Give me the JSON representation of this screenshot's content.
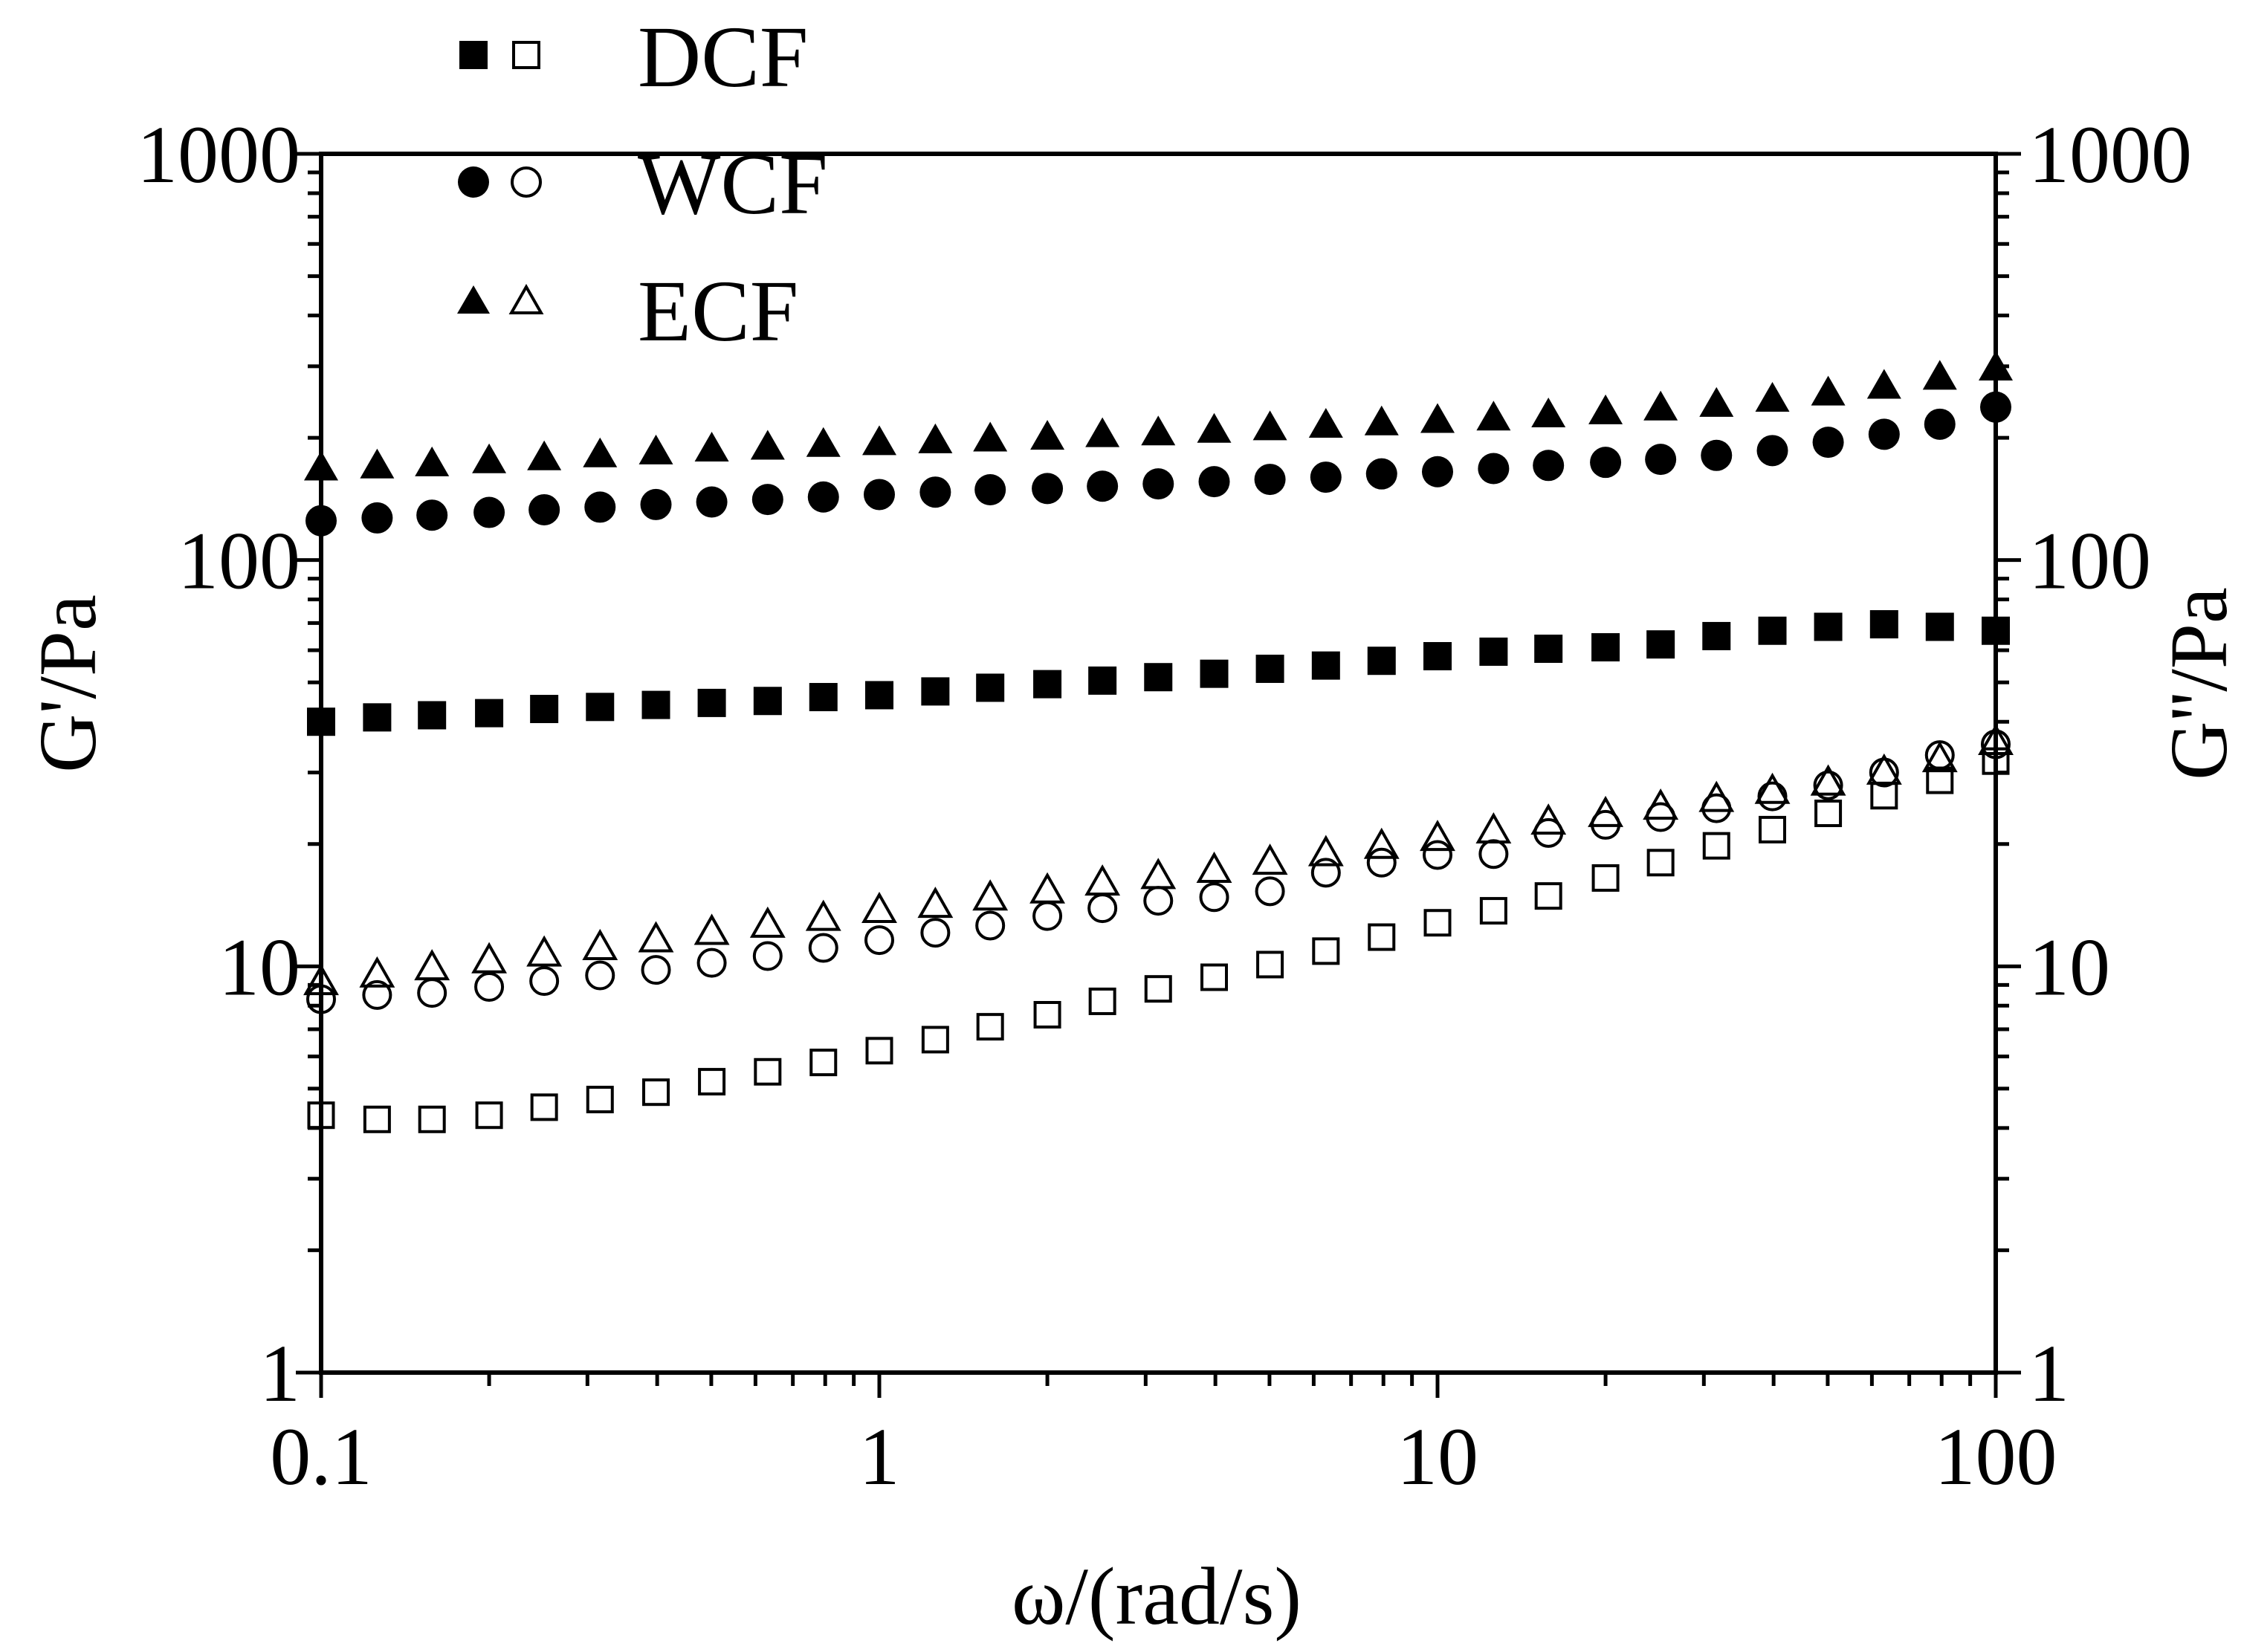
{
  "chart_data": {
    "type": "scatter",
    "title": "",
    "xlabel": "ω/(rad/s)",
    "ylabel_left": "G'/Pa",
    "ylabel_right": "G''/Pa",
    "xscale": "log",
    "yscale": "log",
    "xlim": [
      0.1,
      100
    ],
    "ylim": [
      1,
      1000
    ],
    "x_ticks": [
      "0.1",
      "1",
      "10",
      "100"
    ],
    "y_ticks": [
      "1",
      "10",
      "100",
      "1000"
    ],
    "legend_position": "top-left",
    "legend": [
      {
        "label": "DCF",
        "marker": "square"
      },
      {
        "label": "WCF",
        "marker": "circle"
      },
      {
        "label": "ECF",
        "marker": "triangle"
      }
    ],
    "x": [
      0.1,
      0.126,
      0.158,
      0.2,
      0.251,
      0.316,
      0.398,
      0.501,
      0.631,
      0.794,
      1,
      1.26,
      1.58,
      2,
      2.51,
      3.16,
      3.98,
      5.01,
      6.31,
      7.94,
      10,
      12.6,
      15.8,
      20,
      25.1,
      31.6,
      39.8,
      50.1,
      63.1,
      79.4,
      100
    ],
    "series": [
      {
        "name": "DCF G'",
        "sample": "DCF",
        "modulus": "G'",
        "marker": "square",
        "filled": true,
        "values": [
          40,
          41,
          41.5,
          42,
          43,
          43.5,
          44,
          44.5,
          45,
          46,
          46.5,
          47.5,
          48.5,
          49.5,
          50.5,
          51.5,
          52.5,
          54,
          55,
          56.5,
          58,
          59.5,
          60.5,
          61,
          62,
          65,
          67,
          68.5,
          69.5,
          68.5,
          67
        ]
      },
      {
        "name": "DCF G''",
        "sample": "DCF",
        "modulus": "G''",
        "marker": "square",
        "filled": false,
        "values": [
          4.3,
          4.2,
          4.2,
          4.3,
          4.5,
          4.7,
          4.9,
          5.2,
          5.5,
          5.8,
          6.2,
          6.6,
          7.1,
          7.6,
          8.2,
          8.8,
          9.4,
          10.1,
          10.9,
          11.8,
          12.8,
          13.7,
          14.9,
          16.5,
          18,
          19.8,
          21.7,
          23.8,
          26.3,
          28.7,
          32
        ]
      },
      {
        "name": "WCF G'",
        "sample": "WCF",
        "modulus": "G'",
        "marker": "circle",
        "filled": true,
        "values": [
          125,
          127,
          129,
          131,
          133,
          135,
          137,
          139,
          141,
          143,
          145,
          147,
          149,
          150,
          152,
          154,
          156,
          158,
          160,
          163,
          165,
          168,
          171,
          174,
          177,
          181,
          186,
          195,
          204,
          216,
          238
        ]
      },
      {
        "name": "WCF G''",
        "sample": "WCF",
        "modulus": "G''",
        "marker": "circle",
        "filled": false,
        "values": [
          8.3,
          8.5,
          8.6,
          8.9,
          9.2,
          9.5,
          9.8,
          10.2,
          10.6,
          11.1,
          11.6,
          12.1,
          12.6,
          13.3,
          13.9,
          14.5,
          14.8,
          15.3,
          17,
          18,
          18.8,
          18.9,
          21.3,
          22.3,
          23.3,
          24.5,
          26.2,
          27.9,
          30,
          33.1,
          35.2
        ]
      },
      {
        "name": "ECF G'",
        "sample": "ECF",
        "modulus": "G'",
        "marker": "triangle",
        "filled": true,
        "values": [
          168,
          170,
          172,
          175,
          178,
          181,
          184,
          187,
          189,
          192,
          194,
          196,
          198,
          200,
          203,
          205,
          208,
          211,
          214,
          217,
          220,
          223,
          227,
          231,
          236,
          241,
          248,
          257,
          267,
          281,
          296
        ]
      },
      {
        "name": "ECF G''",
        "sample": "ECF",
        "modulus": "G''",
        "marker": "triangle",
        "filled": false,
        "values": [
          9.1,
          9.5,
          9.9,
          10.3,
          10.7,
          11.1,
          11.6,
          12.1,
          12.6,
          13.1,
          13.7,
          14.1,
          14.7,
          15.3,
          16,
          16.6,
          17.2,
          18,
          18.9,
          19.7,
          20.6,
          21.5,
          22.6,
          23.6,
          24.6,
          25.7,
          26.9,
          28.2,
          30,
          32.2,
          35.5
        ]
      }
    ]
  }
}
